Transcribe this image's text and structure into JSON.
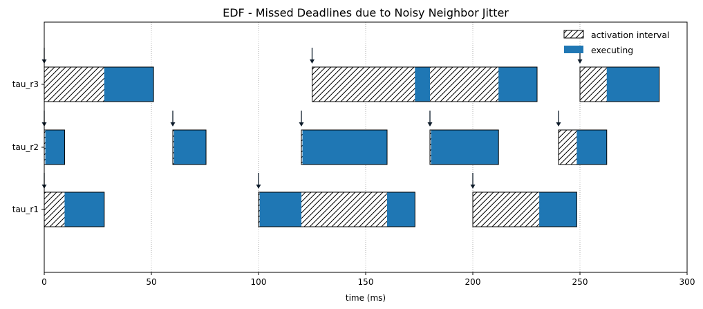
{
  "chart_data": {
    "type": "gantt",
    "title": "EDF - Missed Deadlines due to Noisy Neighbor Jitter",
    "xlabel": "time (ms)",
    "ylabel": "",
    "xlim": [
      0,
      300
    ],
    "xticks": [
      0,
      50,
      100,
      150,
      200,
      250,
      300
    ],
    "grid": "vertical dotted at x ticks",
    "legend": {
      "placement": "top-right",
      "entries": [
        {
          "name": "activation interval",
          "style": "hatched",
          "color": "#ffffff"
        },
        {
          "name": "executing",
          "style": "solid",
          "color": "#1f77b4"
        }
      ]
    },
    "tasks": [
      {
        "name": "tau_r3",
        "activations": [
          {
            "release": 0,
            "end": 51,
            "exec": [
              [
                28,
                51
              ]
            ]
          },
          {
            "release": 125,
            "end": 230,
            "exec": [
              [
                173,
                180
              ],
              [
                212,
                230
              ]
            ]
          },
          {
            "release": 250,
            "end": 287,
            "exec": [
              [
                262.5,
                287
              ]
            ]
          }
        ]
      },
      {
        "name": "tau_r2",
        "activations": [
          {
            "release": 0,
            "end": 9.5,
            "exec": [
              [
                0.5,
                9.5
              ]
            ]
          },
          {
            "release": 60,
            "end": 75.5,
            "exec": [
              [
                60.5,
                75.5
              ]
            ]
          },
          {
            "release": 120,
            "end": 160,
            "exec": [
              [
                120.5,
                160
              ]
            ]
          },
          {
            "release": 180,
            "end": 212,
            "exec": [
              [
                180.5,
                212
              ]
            ]
          },
          {
            "release": 240,
            "end": 262.5,
            "exec": [
              [
                248.5,
                262.5
              ]
            ]
          }
        ]
      },
      {
        "name": "tau_r1",
        "activations": [
          {
            "release": 0,
            "end": 28,
            "exec": [
              [
                9.5,
                28
              ]
            ]
          },
          {
            "release": 100,
            "end": 173,
            "exec": [
              [
                100.5,
                120
              ],
              [
                160,
                173
              ]
            ]
          },
          {
            "release": 200,
            "end": 248.5,
            "exec": [
              [
                231,
                248.5
              ]
            ]
          }
        ]
      }
    ],
    "colors": {
      "exec": "#1f77b4",
      "edge": "#000000",
      "grid": "#b0b0b0",
      "arrow": "#0d1b2a"
    }
  }
}
